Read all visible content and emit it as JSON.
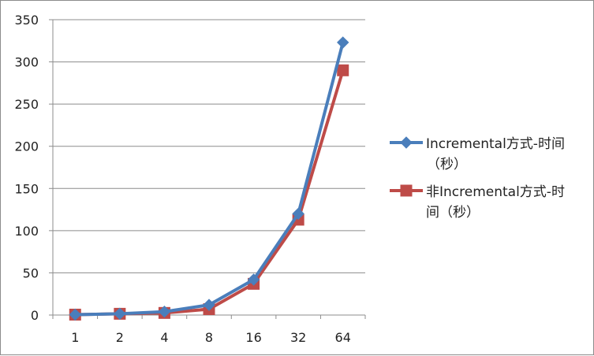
{
  "chart_data": {
    "type": "line",
    "title": "",
    "xlabel": "",
    "ylabel": "",
    "x": [
      "1",
      "2",
      "4",
      "8",
      "16",
      "32",
      "64"
    ],
    "ylim": [
      0,
      350
    ],
    "yticks": [
      0,
      50,
      100,
      150,
      200,
      250,
      300,
      350
    ],
    "grid": true,
    "legend_position": "right",
    "series": [
      {
        "name_lines": [
          "Incremental方式-时间",
          "（秒）"
        ],
        "values": [
          0.5,
          1.5,
          4,
          12,
          42,
          120,
          323
        ],
        "color": "#4a7ebb",
        "marker": "diamond"
      },
      {
        "name_lines": [
          "非Incremental方式-时",
          "间（秒）"
        ],
        "values": [
          0.5,
          1.5,
          2.5,
          7,
          37,
          113,
          290
        ],
        "color": "#be4b48",
        "marker": "square"
      }
    ]
  }
}
